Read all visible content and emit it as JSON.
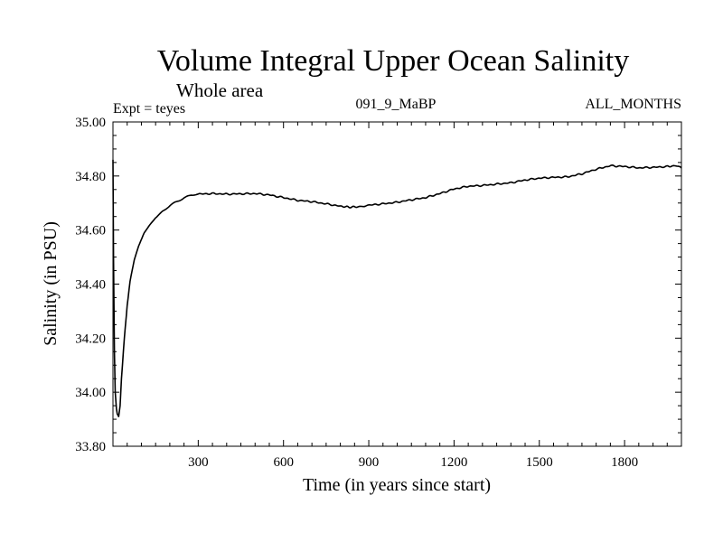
{
  "header": {
    "title": "Volume Integral Upper Ocean Salinity",
    "subtitle": "Whole area",
    "experiment": "Expt = teyes",
    "run_id": "091_9_MaBP",
    "period": "ALL_MONTHS"
  },
  "chart_data": {
    "type": "line",
    "title": "Volume Integral Upper Ocean Salinity",
    "xlabel": "Time (in years since start)",
    "ylabel": "Salinity (in PSU)",
    "xlim": [
      0,
      2000
    ],
    "ylim": [
      33.8,
      35.0
    ],
    "xticks": [
      300,
      600,
      900,
      1200,
      1500,
      1800
    ],
    "xtick_labels": [
      "300",
      "600",
      "900",
      "1200",
      "1500",
      "1800"
    ],
    "yticks": [
      33.8,
      34.0,
      34.2,
      34.4,
      34.6,
      34.8,
      35.0
    ],
    "ytick_labels": [
      "33.80",
      "34.00",
      "34.20",
      "34.40",
      "34.60",
      "34.80",
      "35.00"
    ],
    "grid": false,
    "series": [
      {
        "name": "salinity",
        "x": [
          0,
          2,
          5,
          8,
          12,
          15,
          20,
          25,
          30,
          40,
          50,
          60,
          75,
          90,
          110,
          130,
          150,
          175,
          200,
          225,
          250,
          275,
          300,
          350,
          400,
          450,
          500,
          550,
          600,
          650,
          700,
          750,
          800,
          830,
          860,
          900,
          950,
          1000,
          1050,
          1100,
          1150,
          1200,
          1250,
          1300,
          1350,
          1400,
          1450,
          1500,
          1550,
          1600,
          1650,
          1700,
          1750,
          1800,
          1850,
          1900,
          1950,
          1980,
          2000
        ],
        "y": [
          34.86,
          34.5,
          34.15,
          34.0,
          33.94,
          33.92,
          33.91,
          33.95,
          34.05,
          34.2,
          34.32,
          34.41,
          34.49,
          34.54,
          34.59,
          34.62,
          34.645,
          34.67,
          34.69,
          34.705,
          34.72,
          34.728,
          34.733,
          34.735,
          34.733,
          34.734,
          34.735,
          34.73,
          34.72,
          34.71,
          34.705,
          34.697,
          34.688,
          34.685,
          34.686,
          34.692,
          34.697,
          34.703,
          34.712,
          34.72,
          34.735,
          34.752,
          34.762,
          34.765,
          34.77,
          34.775,
          34.785,
          34.792,
          34.795,
          34.797,
          34.808,
          34.825,
          34.838,
          34.835,
          34.83,
          34.832,
          34.835,
          34.838,
          34.83
        ]
      }
    ]
  }
}
